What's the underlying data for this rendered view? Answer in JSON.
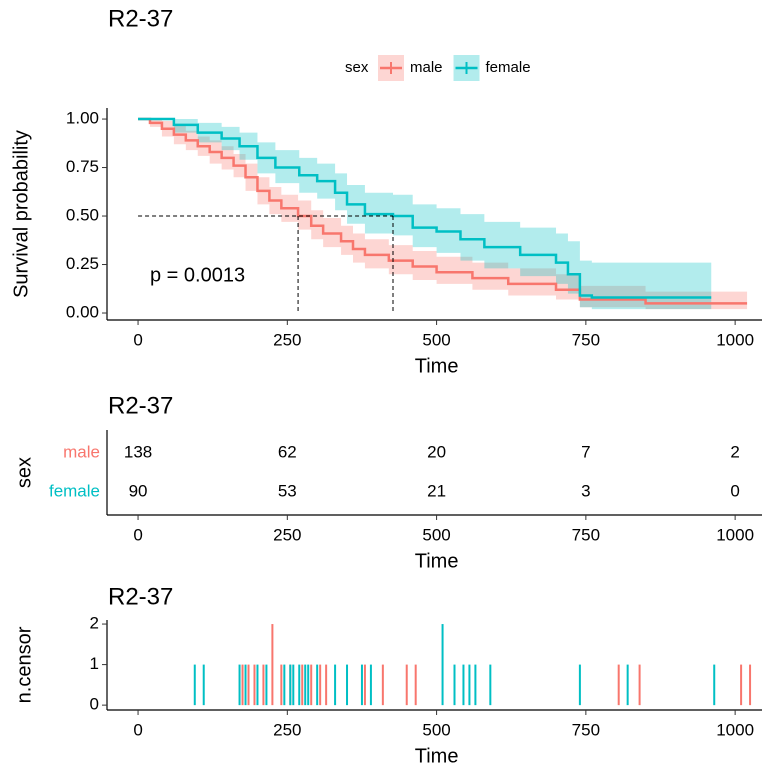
{
  "chart_data": [
    {
      "type": "step",
      "title": "R2-37",
      "xlabel": "Time",
      "ylabel": "Survival probability",
      "legend": {
        "title": "sex"
      },
      "annotation": "p = 0.0013",
      "median": {
        "y": 0.5,
        "x": [
          268,
          427
        ]
      },
      "xlim": [
        -52,
        1045
      ],
      "xticks": [
        0,
        250,
        500,
        750,
        1000
      ],
      "ylim": [
        -0.036,
        1.057
      ],
      "yticks": [
        {
          "value": 0,
          "label": "0.00"
        },
        {
          "value": 0.25,
          "label": "0.25"
        },
        {
          "value": 0.5,
          "label": "0.50"
        },
        {
          "value": 0.75,
          "label": "0.75"
        },
        {
          "value": 1,
          "label": "1.00"
        }
      ],
      "series": [
        {
          "name": "male",
          "color": "#F8766D",
          "x": [
            0,
            20,
            40,
            60,
            80,
            100,
            120,
            140,
            160,
            180,
            200,
            220,
            240,
            268,
            290,
            310,
            340,
            360,
            380,
            420,
            460,
            500,
            560,
            620,
            700,
            740,
            850,
            1020
          ],
          "values": [
            1.0,
            0.98,
            0.95,
            0.92,
            0.89,
            0.86,
            0.83,
            0.8,
            0.76,
            0.7,
            0.63,
            0.58,
            0.54,
            0.5,
            0.45,
            0.41,
            0.37,
            0.33,
            0.3,
            0.27,
            0.24,
            0.21,
            0.18,
            0.15,
            0.12,
            0.07,
            0.05,
            0.05
          ],
          "upper": [
            1.0,
            1.0,
            0.99,
            0.97,
            0.94,
            0.91,
            0.89,
            0.86,
            0.82,
            0.77,
            0.7,
            0.65,
            0.61,
            0.58,
            0.53,
            0.49,
            0.45,
            0.41,
            0.38,
            0.35,
            0.32,
            0.29,
            0.26,
            0.23,
            0.2,
            0.14,
            0.11,
            0.11
          ],
          "lower": [
            1.0,
            0.96,
            0.91,
            0.87,
            0.84,
            0.81,
            0.77,
            0.74,
            0.7,
            0.63,
            0.56,
            0.51,
            0.47,
            0.43,
            0.38,
            0.34,
            0.3,
            0.26,
            0.23,
            0.2,
            0.17,
            0.15,
            0.12,
            0.09,
            0.07,
            0.03,
            0.02,
            0.02
          ]
        },
        {
          "name": "female",
          "color": "#00BFC4",
          "x": [
            0,
            60,
            100,
            140,
            170,
            200,
            230,
            270,
            300,
            330,
            350,
            380,
            427,
            460,
            500,
            540,
            580,
            640,
            700,
            720,
            740,
            760,
            960
          ],
          "values": [
            1.0,
            0.97,
            0.93,
            0.9,
            0.86,
            0.8,
            0.75,
            0.71,
            0.68,
            0.62,
            0.56,
            0.51,
            0.5,
            0.44,
            0.42,
            0.38,
            0.34,
            0.3,
            0.26,
            0.2,
            0.09,
            0.08,
            0.08
          ],
          "upper": [
            1.0,
            1.0,
            0.98,
            0.96,
            0.93,
            0.88,
            0.84,
            0.8,
            0.77,
            0.72,
            0.66,
            0.62,
            0.61,
            0.56,
            0.54,
            0.51,
            0.47,
            0.44,
            0.41,
            0.37,
            0.27,
            0.26,
            0.26
          ],
          "lower": [
            1.0,
            0.93,
            0.88,
            0.84,
            0.79,
            0.72,
            0.67,
            0.62,
            0.59,
            0.53,
            0.46,
            0.41,
            0.4,
            0.34,
            0.31,
            0.27,
            0.23,
            0.19,
            0.15,
            0.1,
            0.03,
            0.02,
            0.02
          ]
        }
      ]
    },
    {
      "type": "table",
      "title": "R2-37",
      "xlabel": "Time",
      "ylabel": "sex",
      "xlim": [
        -52,
        1045
      ],
      "xticks": [
        0,
        250,
        500,
        750,
        1000
      ],
      "categories": [
        "male",
        "female"
      ],
      "x": [
        0,
        250,
        500,
        750,
        1000
      ],
      "series": [
        {
          "name": "male",
          "color": "#F8766D",
          "values": [
            138,
            62,
            20,
            7,
            2
          ]
        },
        {
          "name": "female",
          "color": "#00BFC4",
          "values": [
            90,
            53,
            21,
            3,
            0
          ]
        }
      ]
    },
    {
      "type": "bar",
      "title": "R2-37",
      "xlabel": "Time",
      "ylabel": "n.censor",
      "xlim": [
        -52,
        1045
      ],
      "xticks": [
        0,
        250,
        500,
        750,
        1000
      ],
      "ylim": [
        -0.12,
        2.1
      ],
      "yticks": [
        0,
        1,
        2
      ],
      "series": [
        {
          "name": "male",
          "color": "#F8766D",
          "x": [
            175,
            185,
            195,
            210,
            225,
            240,
            255,
            275,
            290,
            305,
            315,
            380,
            410,
            450,
            465,
            805,
            840,
            1010,
            1025
          ],
          "values": [
            1,
            1,
            1,
            1,
            2,
            1,
            1,
            1,
            1,
            1,
            1,
            1,
            1,
            1,
            1,
            1,
            1,
            1,
            1
          ]
        },
        {
          "name": "female",
          "color": "#00BFC4",
          "x": [
            95,
            110,
            170,
            180,
            200,
            215,
            245,
            255,
            260,
            270,
            280,
            285,
            300,
            330,
            350,
            375,
            390,
            510,
            530,
            545,
            555,
            565,
            590,
            740,
            820,
            965
          ],
          "values": [
            1,
            1,
            1,
            1,
            1,
            1,
            1,
            1,
            1,
            1,
            1,
            1,
            1,
            1,
            1,
            1,
            1,
            2,
            1,
            1,
            1,
            1,
            1,
            1,
            1,
            1
          ]
        }
      ]
    }
  ]
}
